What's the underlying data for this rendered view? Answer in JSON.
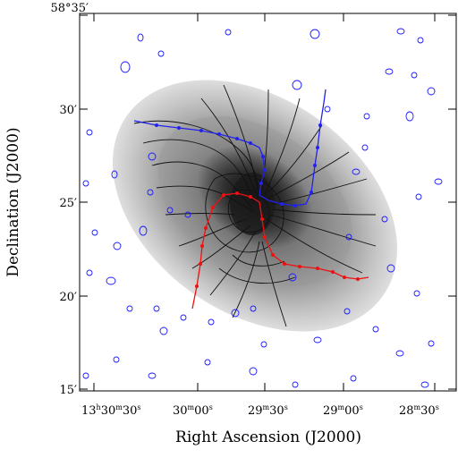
{
  "figure": {
    "xlabel": "Right Ascension (J2000)",
    "ylabel": "Declination (J2000)",
    "colors": {
      "frame": "#000000",
      "contour_black": "#111111",
      "contour_blue": "#1a1aff",
      "track_blue": "#2222ee",
      "track_red": "#ee1111",
      "image_dark": "#1a1a1a",
      "image_light": "#dcdcdc"
    }
  },
  "x_ticks": [
    {
      "h": "13",
      "hs": "h",
      "m": "30",
      "ms": "m",
      "s": "30",
      "ss": "s"
    },
    {
      "m": "30",
      "ms": "m",
      "s": "00",
      "ss": "s"
    },
    {
      "m": "29",
      "ms": "m",
      "s": "30",
      "ss": "s"
    },
    {
      "m": "29",
      "ms": "m",
      "s": "00",
      "ss": "s"
    },
    {
      "m": "28",
      "ms": "m",
      "s": "30",
      "ss": "s"
    }
  ],
  "y_ticks": [
    {
      "label": "58°35′"
    },
    {
      "label": "30′"
    },
    {
      "label": "25′"
    },
    {
      "label": "20′"
    },
    {
      "label": "15′"
    }
  ]
}
